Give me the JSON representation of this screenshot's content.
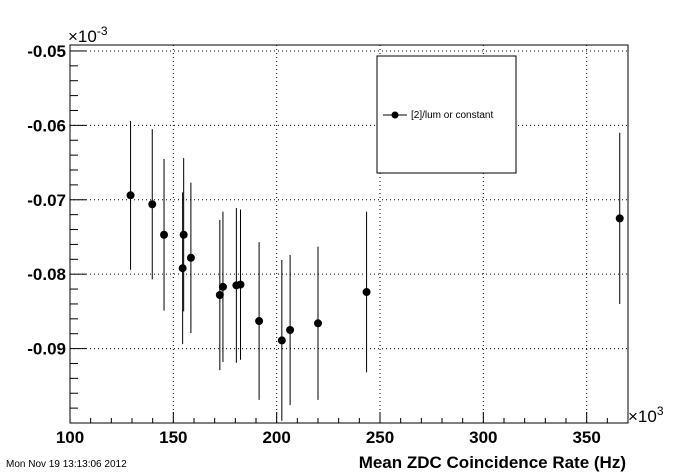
{
  "timestamp": "Mon Nov 19 13:13:06 2012",
  "chart_data": {
    "type": "scatter",
    "title": "",
    "xlabel": "Mean ZDC Coincidence Rate (Hz)",
    "ylabel": "",
    "x_multiplier_label": "×10",
    "x_multiplier_exp": "3",
    "y_multiplier_label": "×10",
    "y_multiplier_exp": "-3",
    "xlim": [
      100,
      370
    ],
    "ylim": [
      -0.1,
      -0.0492
    ],
    "x_tick_labels": [
      "100",
      "150",
      "200",
      "250",
      "300",
      "350"
    ],
    "x_ticks": [
      100,
      150,
      200,
      250,
      300,
      350
    ],
    "y_tick_labels": [
      "-0.05",
      "-0.06",
      "-0.07",
      "-0.08",
      "-0.09"
    ],
    "y_ticks": [
      -0.05,
      -0.06,
      -0.07,
      -0.08,
      -0.09
    ],
    "grid": true,
    "legend_position": "top-right",
    "series": [
      {
        "name": "[2]/lum or constant",
        "color": "#000000",
        "points": [
          {
            "x": 129.3,
            "y": -0.0694,
            "err": 0.01
          },
          {
            "x": 139.8,
            "y": -0.0706,
            "err": 0.0101
          },
          {
            "x": 145.5,
            "y": -0.0747,
            "err": 0.0102
          },
          {
            "x": 154.5,
            "y": -0.0792,
            "err": 0.0102
          },
          {
            "x": 155.0,
            "y": -0.0747,
            "err": 0.0103
          },
          {
            "x": 158.5,
            "y": -0.0778,
            "err": 0.0101
          },
          {
            "x": 172.5,
            "y": -0.0828,
            "err": 0.0101
          },
          {
            "x": 174.0,
            "y": -0.0817,
            "err": 0.0101
          },
          {
            "x": 180.5,
            "y": -0.0815,
            "err": 0.0104
          },
          {
            "x": 182.5,
            "y": -0.0814,
            "err": 0.0101
          },
          {
            "x": 191.5,
            "y": -0.0863,
            "err": 0.0106
          },
          {
            "x": 202.5,
            "y": -0.0889,
            "err": 0.0108
          },
          {
            "x": 206.5,
            "y": -0.0875,
            "err": 0.0101
          },
          {
            "x": 220.0,
            "y": -0.0866,
            "err": 0.0103
          },
          {
            "x": 243.5,
            "y": -0.0824,
            "err": 0.0108
          },
          {
            "x": 366.0,
            "y": -0.0725,
            "err": 0.0115
          }
        ]
      }
    ]
  }
}
